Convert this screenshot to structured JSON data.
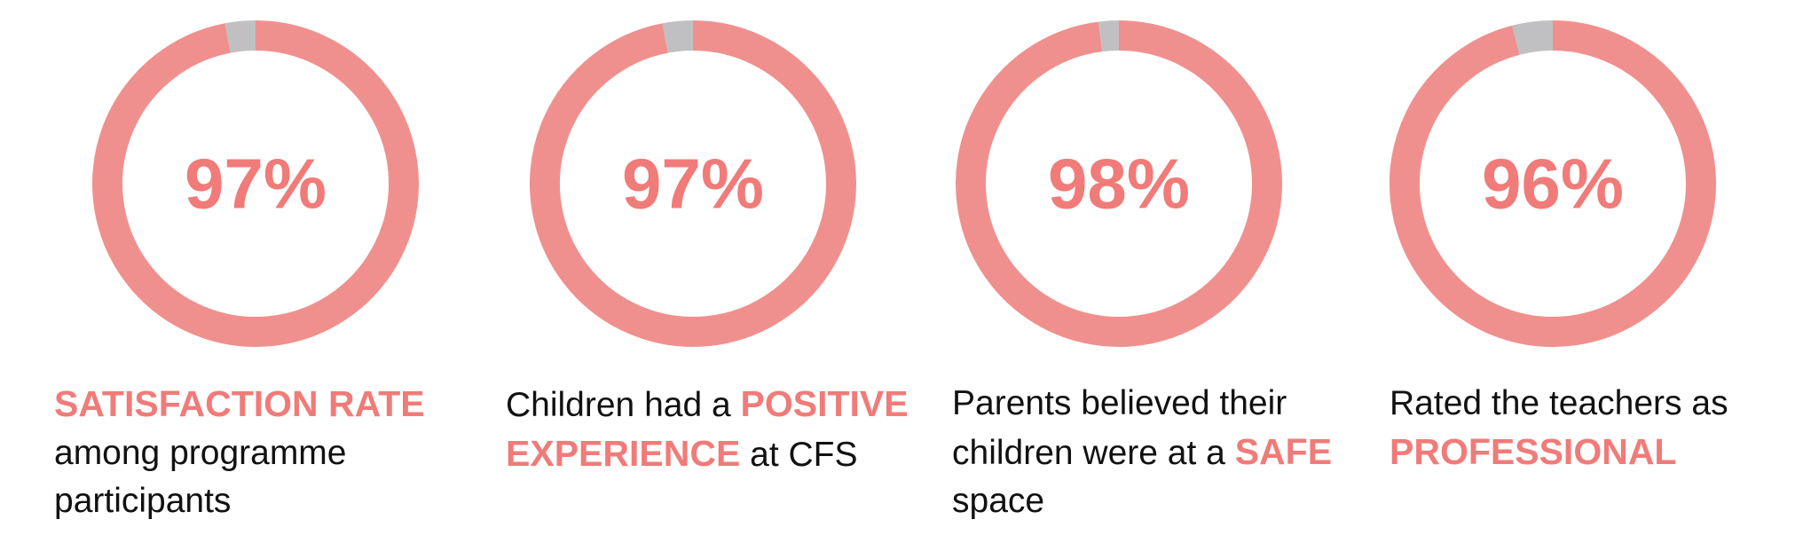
{
  "chart_data": [
    {
      "type": "donut",
      "values": [
        97,
        3
      ],
      "colors": [
        "#f0908e",
        "#c0c0c2"
      ],
      "center_label": "97%",
      "caption": [
        {
          "text": "SATISFACTION RATE",
          "highlight": true
        },
        {
          "text": "among programme participants",
          "highlight": false
        }
      ]
    },
    {
      "type": "donut",
      "values": [
        97,
        3
      ],
      "colors": [
        "#f0908e",
        "#c0c0c2"
      ],
      "center_label": "97%",
      "caption": [
        {
          "text": "Children had a",
          "highlight": false
        },
        {
          "text": "POSITIVE EXPERIENCE",
          "highlight": true
        },
        {
          "text": "at CFS",
          "highlight": false
        }
      ]
    },
    {
      "type": "donut",
      "values": [
        98,
        2
      ],
      "colors": [
        "#f0908e",
        "#c0c0c2"
      ],
      "center_label": "98%",
      "caption": [
        {
          "text": "Parents believed their children were at a",
          "highlight": false
        },
        {
          "text": "SAFE",
          "highlight": true
        },
        {
          "text": "space",
          "highlight": false
        }
      ]
    },
    {
      "type": "donut",
      "values": [
        96,
        4
      ],
      "colors": [
        "#f0908e",
        "#c0c0c2"
      ],
      "center_label": "96%",
      "caption": [
        {
          "text": "Rated the teachers as",
          "highlight": false
        },
        {
          "text": "PROFESSIONAL",
          "highlight": true
        }
      ]
    }
  ]
}
